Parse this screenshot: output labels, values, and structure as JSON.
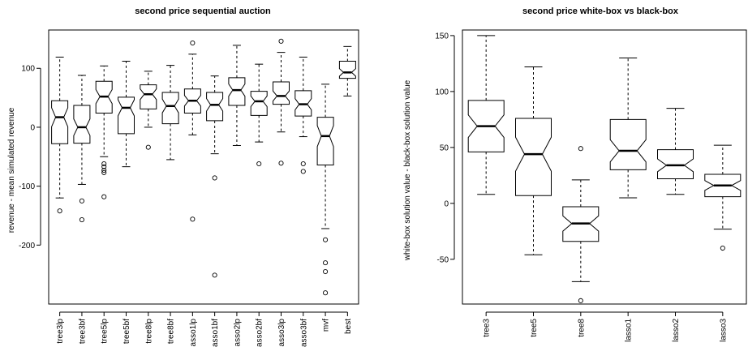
{
  "chart_data": [
    {
      "type": "boxplot",
      "notched": true,
      "title": "second price sequential auction",
      "ylabel": "revenue - mean simulated revenue",
      "xlabel": "",
      "ylim": [
        -300,
        165
      ],
      "yticks": [
        -200,
        -100,
        0,
        100
      ],
      "categories": [
        "tree3lp",
        "tree3bf",
        "tree5lp",
        "tree5bf",
        "tree8lp",
        "tree8bf",
        "lasso1lp",
        "lasso1bf",
        "lasso2lp",
        "lasso2bf",
        "lasso3lp",
        "lasso3bf",
        "mvf",
        "best"
      ],
      "boxes": [
        {
          "whisker_low": -120,
          "q1": -28,
          "median": 17,
          "q3": 45,
          "whisker_high": 119,
          "outliers": [
            -142
          ]
        },
        {
          "whisker_low": -97,
          "q1": -27,
          "median": 0,
          "q3": 37,
          "whisker_high": 88,
          "outliers": [
            -125,
            -157
          ]
        },
        {
          "whisker_low": -50,
          "q1": 24,
          "median": 52,
          "q3": 78,
          "whisker_high": 104,
          "outliers": [
            -62,
            -67,
            -73,
            -77,
            -118
          ]
        },
        {
          "whisker_low": -67,
          "q1": -11,
          "median": 33,
          "q3": 51,
          "whisker_high": 112,
          "outliers": []
        },
        {
          "whisker_low": 0,
          "q1": 31,
          "median": 56,
          "q3": 72,
          "whisker_high": 95,
          "outliers": [
            -34
          ]
        },
        {
          "whisker_low": -55,
          "q1": 6,
          "median": 36,
          "q3": 59,
          "whisker_high": 105,
          "outliers": []
        },
        {
          "whisker_low": -13,
          "q1": 24,
          "median": 45,
          "q3": 65,
          "whisker_high": 124,
          "outliers": [
            143,
            -156
          ]
        },
        {
          "whisker_low": -45,
          "q1": 11,
          "median": 38,
          "q3": 59,
          "whisker_high": 87,
          "outliers": [
            -86,
            -251
          ]
        },
        {
          "whisker_low": -31,
          "q1": 37,
          "median": 63,
          "q3": 84,
          "whisker_high": 139,
          "outliers": []
        },
        {
          "whisker_low": -25,
          "q1": 20,
          "median": 44,
          "q3": 61,
          "whisker_high": 107,
          "outliers": [
            -62
          ]
        },
        {
          "whisker_low": -8,
          "q1": 39,
          "median": 53,
          "q3": 77,
          "whisker_high": 127,
          "outliers": [
            146,
            -61
          ]
        },
        {
          "whisker_low": -16,
          "q1": 19,
          "median": 39,
          "q3": 62,
          "whisker_high": 119,
          "outliers": [
            -62,
            -75
          ]
        },
        {
          "whisker_low": -172,
          "q1": -64,
          "median": -15,
          "q3": 17,
          "whisker_high": 73,
          "outliers": [
            -191,
            -230,
            -245,
            -281
          ]
        },
        {
          "whisker_low": 53,
          "q1": 83,
          "median": 93,
          "q3": 112,
          "whisker_high": 137,
          "outliers": []
        }
      ]
    },
    {
      "type": "boxplot",
      "notched": true,
      "title": "second price white-box vs black-box",
      "ylabel": "white-box solution value - black-box solution value",
      "xlabel": "",
      "ylim": [
        -90,
        155
      ],
      "yticks": [
        -50,
        0,
        50,
        100,
        150
      ],
      "categories": [
        "tree3",
        "tree5",
        "tree8",
        "lasso1",
        "lasso2",
        "lasso3"
      ],
      "boxes": [
        {
          "whisker_low": 8,
          "q1": 46,
          "median": 69,
          "q3": 92,
          "whisker_high": 150,
          "outliers": []
        },
        {
          "whisker_low": -46,
          "q1": 7,
          "median": 44,
          "q3": 76,
          "whisker_high": 122,
          "outliers": []
        },
        {
          "whisker_low": -70,
          "q1": -34,
          "median": -18,
          "q3": -3,
          "whisker_high": 21,
          "outliers": [
            49,
            -87
          ]
        },
        {
          "whisker_low": 5,
          "q1": 30,
          "median": 47,
          "q3": 75,
          "whisker_high": 130,
          "outliers": []
        },
        {
          "whisker_low": 8,
          "q1": 22,
          "median": 34,
          "q3": 48,
          "whisker_high": 85,
          "outliers": []
        },
        {
          "whisker_low": -23,
          "q1": 6,
          "median": 16,
          "q3": 26,
          "whisker_high": 52,
          "outliers": [
            -40
          ]
        }
      ]
    }
  ]
}
